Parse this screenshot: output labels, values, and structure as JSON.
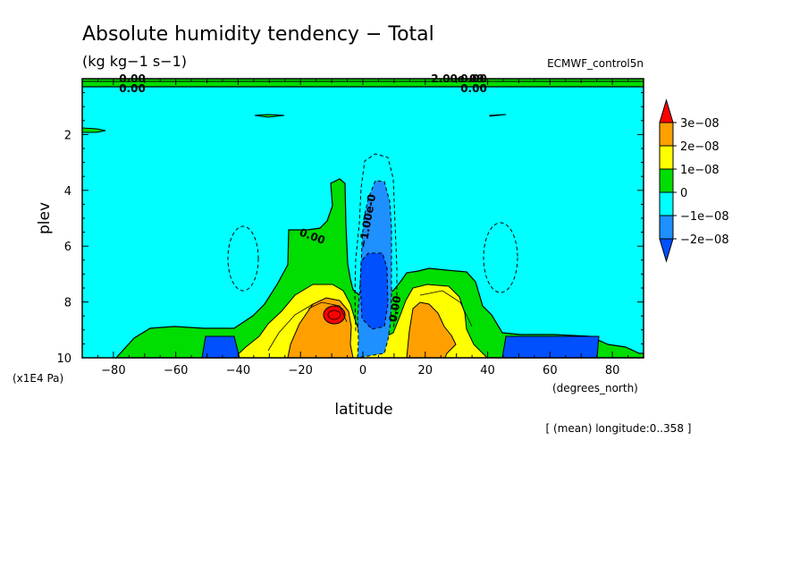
{
  "chart_data": {
    "type": "heatmap",
    "title": "Absolute humidity tendency − Total",
    "units": "(kg kg−1 s−1)",
    "source": "ECMWF_control5n",
    "xlabel": "latitude",
    "xunit": "(degrees_north)",
    "ylabel": "plev",
    "yunit": "(x1E4 Pa)",
    "xlim": [
      -90,
      90
    ],
    "ylim": [
      10,
      0
    ],
    "x_ticks": [
      -80,
      -60,
      -40,
      -20,
      0,
      20,
      40,
      60,
      80
    ],
    "y_ticks": [
      2,
      4,
      6,
      8,
      10
    ],
    "footnote": "[ (mean) longitude:0..358 ]",
    "colorbar": {
      "labels": [
        "3e−08",
        "2e−08",
        "1e−08",
        "0",
        "−1e−08",
        "−2e−08"
      ],
      "levels": [
        3e-08,
        2e-08,
        1e-08,
        0,
        -1e-08,
        -2e-08
      ],
      "colors": [
        "#ff0000",
        "#ffa000",
        "#ffff00",
        "#00dd00",
        "#00ffff",
        "#1e90ff",
        "#0050ff"
      ]
    },
    "contour_labels": [
      "0.00",
      "0.00",
      "0.00",
      "0.00",
      "2.00e-09",
      "0.00",
      "−1.00e-0",
      "0.00"
    ],
    "regions": [
      {
        "value_range": "0 to 1e-08",
        "color": "#00dd00",
        "lat": [
          -75,
          90
        ],
        "plev": [
          4,
          10
        ]
      },
      {
        "value_range": "1e-08 to 2e-08",
        "color": "#ffff00",
        "lat": [
          -30,
          35
        ],
        "plev": [
          7.5,
          10
        ]
      },
      {
        "value_range": "2e-08 to 3e-08",
        "color": "#ffa000",
        "lat": [
          -20,
          30
        ],
        "plev": [
          8,
          10
        ]
      },
      {
        "value_range": "> 3e-08",
        "color": "#ff0000",
        "lat": [
          -13,
          -7
        ],
        "plev": [
          8.3,
          8.9
        ]
      },
      {
        "value_range": "-2e-08 to -1e-08",
        "color": "#1e90ff",
        "lat": [
          -3,
          10
        ],
        "plev": [
          3.7,
          9
        ]
      },
      {
        "value_range": "< -2e-08",
        "color": "#0050ff",
        "lat": [
          -50,
          -40
        ],
        "plev": [
          9.2,
          10
        ]
      },
      {
        "value_range": "< -2e-08",
        "color": "#0050ff",
        "lat": [
          45,
          77
        ],
        "plev": [
          9.2,
          10
        ]
      }
    ]
  }
}
